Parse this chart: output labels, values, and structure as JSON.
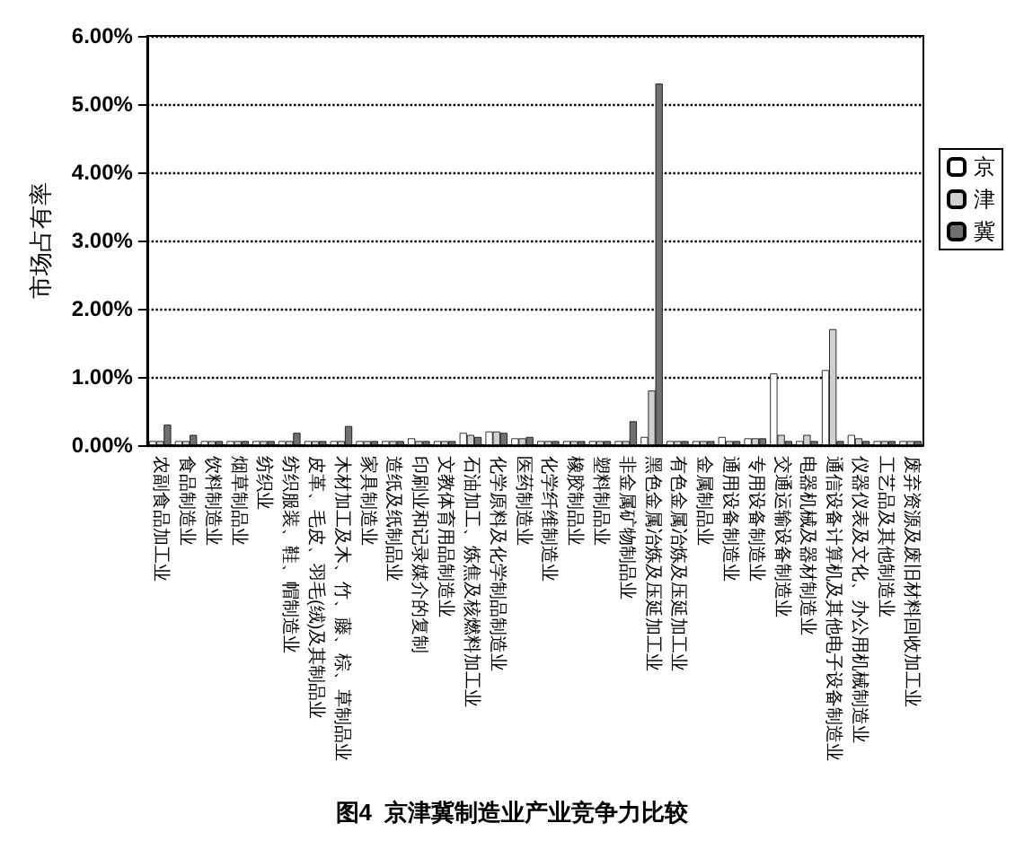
{
  "chart_data": {
    "type": "bar",
    "title": "图4  京津冀制造业产业竞争力比较",
    "ylabel": "市场占有率",
    "categories": [
      "农副食品加工业",
      "食品制造业",
      "饮料制造业",
      "烟草制品业",
      "纺织业",
      "纺织服装、鞋、帽制造业",
      "皮革、毛皮、羽毛(绒)及其制品业",
      "木材加工及木、竹、藤、棕、草制品业",
      "家具制造业",
      "造纸及纸制品业",
      "印刷业和记录媒介的复制",
      "文教体育用品制造业",
      "石油加工、炼焦及核燃料加工业",
      "化学原料及化学制品制造业",
      "医药制造业",
      "化学纤维制造业",
      "橡胶制品业",
      "塑料制品业",
      "非金属矿物制品业",
      "黑色金属冶炼及压延加工业",
      "有色金属冶炼及压延加工业",
      "金属制品业",
      "通用设备制造业",
      "专用设备制造业",
      "交通运输设备制造业",
      "电器机械及器材制造业",
      "通信设备计算机及其他电子设备制造业",
      "仪器仪表及文化、办公用机械制造业",
      "工艺品及其他制造业",
      "废弃资源及废旧材料回收加工业"
    ],
    "series": [
      {
        "name": "京",
        "color": "#ffffff",
        "values": [
          0.06,
          0.06,
          0.06,
          0.06,
          0.06,
          0.06,
          0.06,
          0.06,
          0.06,
          0.06,
          0.1,
          0.06,
          0.18,
          0.2,
          0.1,
          0.06,
          0.06,
          0.06,
          0.06,
          0.12,
          0.06,
          0.06,
          0.12,
          0.1,
          1.05,
          0.06,
          1.1,
          0.15,
          0.06,
          0.06
        ]
      },
      {
        "name": "津",
        "color": "#d0d0d0",
        "values": [
          0.06,
          0.06,
          0.06,
          0.06,
          0.06,
          0.06,
          0.06,
          0.06,
          0.06,
          0.06,
          0.06,
          0.06,
          0.15,
          0.2,
          0.1,
          0.06,
          0.06,
          0.06,
          0.06,
          0.8,
          0.06,
          0.06,
          0.06,
          0.1,
          0.15,
          0.15,
          1.7,
          0.1,
          0.06,
          0.06
        ]
      },
      {
        "name": "冀",
        "color": "#707070",
        "values": [
          0.3,
          0.15,
          0.06,
          0.06,
          0.06,
          0.18,
          0.06,
          0.28,
          0.06,
          0.06,
          0.06,
          0.06,
          0.12,
          0.18,
          0.12,
          0.06,
          0.06,
          0.06,
          0.35,
          5.3,
          0.06,
          0.06,
          0.06,
          0.1,
          0.06,
          0.06,
          0.06,
          0.06,
          0.06,
          0.06
        ]
      }
    ],
    "ylim": [
      0,
      6
    ],
    "yticks": [
      {
        "value": 0,
        "label": "0.00%"
      },
      {
        "value": 1,
        "label": "1.00%"
      },
      {
        "value": 2,
        "label": "2.00%"
      },
      {
        "value": 3,
        "label": "3.00%"
      },
      {
        "value": 4,
        "label": "4.00%"
      },
      {
        "value": 5,
        "label": "5.00%"
      },
      {
        "value": 6,
        "label": "6.00%"
      }
    ],
    "grid": "y",
    "legend": "right"
  }
}
